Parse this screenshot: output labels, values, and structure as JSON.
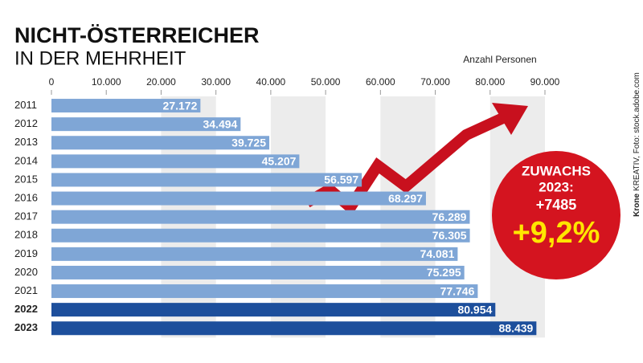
{
  "chart_data": {
    "type": "bar",
    "orientation": "horizontal",
    "title": "NICHT-ÖSTERREICHER",
    "subtitle": "IN DER MEHRHEIT",
    "x_label": "Anzahl Personen",
    "categories": [
      "2011",
      "2012",
      "2013",
      "2014",
      "2015",
      "2016",
      "2017",
      "2018",
      "2019",
      "2020",
      "2021",
      "2022",
      "2023"
    ],
    "values": [
      27172,
      34494,
      39725,
      45207,
      56597,
      68297,
      76289,
      76305,
      74081,
      75295,
      77746,
      80954,
      88439
    ],
    "value_labels": [
      "27.172",
      "34.494",
      "39.725",
      "45.207",
      "56.597",
      "68.297",
      "76.289",
      "76.305",
      "74.081",
      "75.295",
      "77.746",
      "80.954",
      "88.439"
    ],
    "colors": [
      "#7fa6d6",
      "#7fa6d6",
      "#7fa6d6",
      "#7fa6d6",
      "#7fa6d6",
      "#7fa6d6",
      "#7fa6d6",
      "#7fa6d6",
      "#7fa6d6",
      "#7fa6d6",
      "#7fa6d6",
      "#1d4f9c",
      "#1d4f9c"
    ],
    "xlim": [
      0,
      90000
    ],
    "xticks": [
      0,
      {
        "value": 10000,
        "label": "10.000"
      },
      {
        "value": 20000,
        "label": "20.000"
      },
      {
        "value": 30000,
        "label": "30.000"
      },
      {
        "value": 40000,
        "label": "40.000"
      },
      {
        "value": 50000,
        "label": "50.000"
      },
      {
        "value": 60000,
        "label": "60.000"
      },
      {
        "value": 70000,
        "label": "70.000"
      },
      {
        "value": 80000,
        "label": "80.000"
      },
      {
        "value": 90000,
        "label": "90.000"
      }
    ],
    "grid": "bands",
    "annotation": {
      "line1": "ZUWACHS",
      "line2": "2023:",
      "line3": "+7485",
      "line4": "+9,2%"
    },
    "credit": {
      "brand": "Krone",
      "text": "KREATIV, Foto: stock.adobe.com"
    }
  }
}
